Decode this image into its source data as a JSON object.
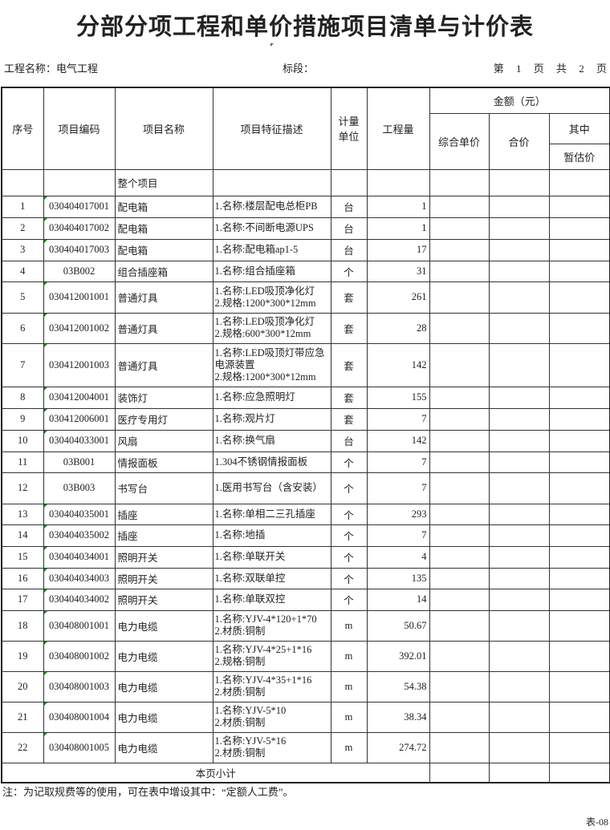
{
  "title": "分部分项工程和单价措施项目清单与计价表",
  "meta": {
    "project": "工程名称：电气工程",
    "section": "标段：",
    "page": "第 1 页 共 2 页"
  },
  "headers": {
    "seq": "序号",
    "code": "项目编码",
    "name": "项目名称",
    "desc": "项目特征描述",
    "unit": "计量单位",
    "qty": "工程量",
    "amount": "金额（元）",
    "unit_price": "综合单价",
    "total": "合价",
    "of_which": "其中",
    "provisional": "暂估价"
  },
  "group_row": "整个项目",
  "rows": [
    {
      "seq": "1",
      "code": "030404017001",
      "name": "配电箱",
      "desc": [
        "1.名称:楼层配电总柜PB"
      ],
      "unit": "台",
      "qty": "1"
    },
    {
      "seq": "2",
      "code": "030404017002",
      "name": "配电箱",
      "desc": [
        "1.名称:不间断电源UPS"
      ],
      "unit": "台",
      "qty": "1"
    },
    {
      "seq": "3",
      "code": "030404017003",
      "name": "配电箱",
      "desc": [
        "1.名称:配电箱ap1-5"
      ],
      "unit": "台",
      "qty": "17"
    },
    {
      "seq": "4",
      "code": "03B002",
      "name": "组合插座箱",
      "desc": [
        "1.名称:组合插座箱"
      ],
      "unit": "个",
      "qty": "31"
    },
    {
      "seq": "5",
      "code": "030412001001",
      "name": "普通灯具",
      "desc": [
        "1.名称:LED吸顶净化灯",
        "2.规格:1200*300*12mm"
      ],
      "unit": "套",
      "qty": "261"
    },
    {
      "seq": "6",
      "code": "030412001002",
      "name": "普通灯具",
      "desc": [
        "1.名称:LED吸顶净化灯",
        "2.规格:600*300*12mm"
      ],
      "unit": "套",
      "qty": "28"
    },
    {
      "seq": "7",
      "code": "030412001003",
      "name": "普通灯具",
      "desc": [
        "1.名称:LED吸顶灯带应急电源装置",
        "2.规格:1200*300*12mm"
      ],
      "unit": "套",
      "qty": "142"
    },
    {
      "seq": "8",
      "code": "030412004001",
      "name": "装饰灯",
      "desc": [
        "1.名称:应急照明灯"
      ],
      "unit": "套",
      "qty": "155"
    },
    {
      "seq": "9",
      "code": "030412006001",
      "name": "医疗专用灯",
      "desc": [
        "1.名称:观片灯"
      ],
      "unit": "套",
      "qty": "7"
    },
    {
      "seq": "10",
      "code": "030404033001",
      "name": "风扇",
      "desc": [
        "1.名称:换气扇"
      ],
      "unit": "台",
      "qty": "142"
    },
    {
      "seq": "11",
      "code": "03B001",
      "name": "情报面板",
      "desc": [
        "1.304不锈钢情报面板"
      ],
      "unit": "个",
      "qty": "7"
    },
    {
      "seq": "12",
      "code": "03B003",
      "name": "书写台",
      "desc": [
        "1.医用书写台（含安装）"
      ],
      "unit": "个",
      "qty": "7"
    },
    {
      "seq": "13",
      "code": "030404035001",
      "name": "插座",
      "desc": [
        "1.名称:单相二三孔插座"
      ],
      "unit": "个",
      "qty": "293"
    },
    {
      "seq": "14",
      "code": "030404035002",
      "name": "插座",
      "desc": [
        "1.名称:地插"
      ],
      "unit": "个",
      "qty": "7"
    },
    {
      "seq": "15",
      "code": "030404034001",
      "name": "照明开关",
      "desc": [
        "1.名称:单联开关"
      ],
      "unit": "个",
      "qty": "4"
    },
    {
      "seq": "16",
      "code": "030404034003",
      "name": "照明开关",
      "desc": [
        "1.名称:双联单控"
      ],
      "unit": "个",
      "qty": "135"
    },
    {
      "seq": "17",
      "code": "030404034002",
      "name": "照明开关",
      "desc": [
        "1.名称:单联双控"
      ],
      "unit": "个",
      "qty": "14"
    },
    {
      "seq": "18",
      "code": "030408001001",
      "name": "电力电缆",
      "desc": [
        "1.名称:YJV-4*120+1*70",
        "2.材质:铜制"
      ],
      "unit": "m",
      "qty": "50.67"
    },
    {
      "seq": "19",
      "code": "030408001002",
      "name": "电力电缆",
      "desc": [
        "1.名称:YJV-4*25+1*16",
        "2.规格:铜制"
      ],
      "unit": "m",
      "qty": "392.01"
    },
    {
      "seq": "20",
      "code": "030408001003",
      "name": "电力电缆",
      "desc": [
        "1.名称:YJV-4*35+1*16",
        "2.材质:铜制"
      ],
      "unit": "m",
      "qty": "54.38"
    },
    {
      "seq": "21",
      "code": "030408001004",
      "name": "电力电缆",
      "desc": [
        "1.名称:YJV-5*10",
        "2.材质:铜制"
      ],
      "unit": "m",
      "qty": "38.34"
    },
    {
      "seq": "22",
      "code": "030408001005",
      "name": "电力电缆",
      "desc": [
        "1.名称:YJV-5*16",
        "2.材质:铜制"
      ],
      "unit": "m",
      "qty": "274.72"
    }
  ],
  "subtotal": "本页小计",
  "note": "注：为记取规费等的使用，可在表中增设其中：“定额人工费”。",
  "footer": "表-08",
  "colors": {
    "cell_marker": "#1a8a1a",
    "border": "#333333"
  }
}
